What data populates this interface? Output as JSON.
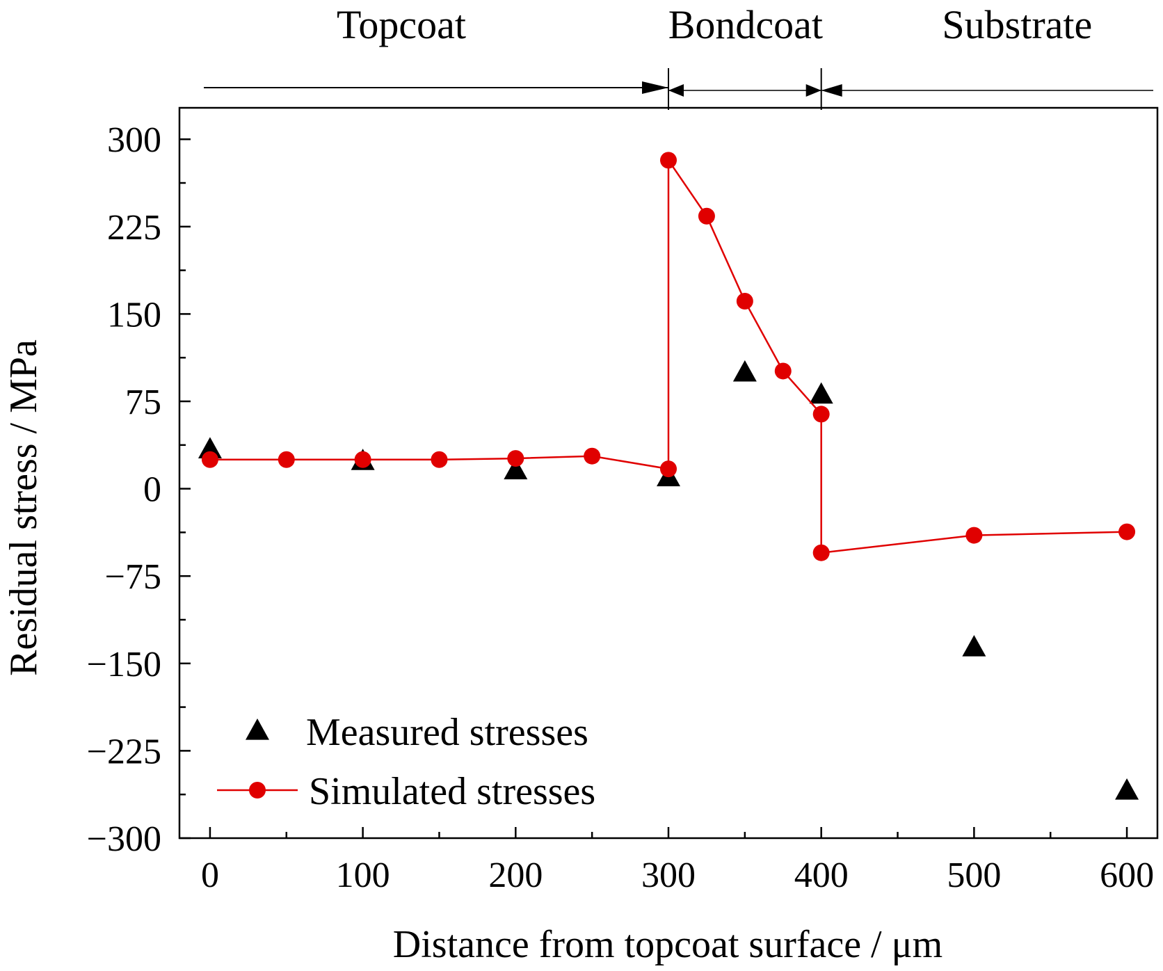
{
  "chart_data": {
    "type": "scatter",
    "xlabel": "Distance from topcoat surface / μm",
    "ylabel": "Residual stress / MPa",
    "xlim": [
      -20,
      620
    ],
    "ylim": [
      -300,
      327
    ],
    "xticks_major": [
      0,
      100,
      200,
      300,
      400,
      500,
      600
    ],
    "xticks_minor": [
      50,
      150,
      250,
      350,
      450,
      550
    ],
    "yticks_major": [
      -300,
      -225,
      -150,
      -75,
      0,
      75,
      150,
      225,
      300
    ],
    "yticks_minor": [
      -262.5,
      -187.5,
      -112.5,
      -37.5,
      37.5,
      112.5,
      187.5,
      262.5
    ],
    "ytick_labels": [
      "−300",
      "−225",
      "−150",
      "−75",
      "0",
      "75",
      "150",
      "225",
      "300"
    ],
    "xtick_labels": [
      "0",
      "100",
      "200",
      "300",
      "400",
      "500",
      "600"
    ],
    "grid": false,
    "legend_position": "bottom-left",
    "regions": [
      {
        "label": "Topcoat",
        "start": -20,
        "end": 300
      },
      {
        "label": "Bondcoat",
        "start": 300,
        "end": 400
      },
      {
        "label": "Substrate",
        "start": 400,
        "end": 620
      }
    ],
    "series": [
      {
        "name": "Measured stresses",
        "marker": "triangle",
        "color": "#000000",
        "x": [
          0,
          100,
          200,
          300,
          350,
          400,
          500,
          600
        ],
        "y": [
          33,
          23,
          15,
          9,
          99,
          80,
          -137,
          -260
        ]
      },
      {
        "name": "Simulated stresses",
        "marker": "circle",
        "line": true,
        "color": "#e00000",
        "x": [
          0,
          50,
          100,
          150,
          200,
          250,
          300,
          300,
          325,
          350,
          375,
          400,
          400,
          500,
          600
        ],
        "y": [
          25,
          25,
          25,
          25,
          26,
          28,
          17,
          282,
          234,
          161,
          101,
          64,
          -55,
          -40,
          -37
        ]
      }
    ]
  }
}
